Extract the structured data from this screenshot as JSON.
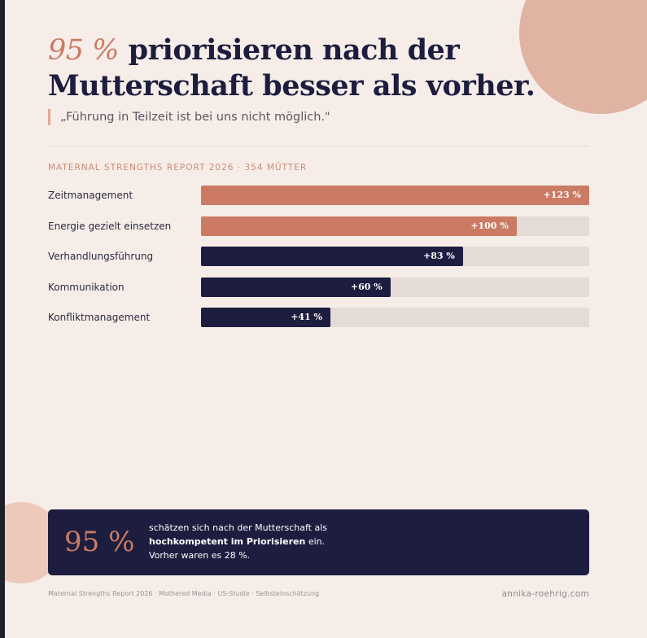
{
  "headline": {
    "accent": "95 %",
    "line1_rest": " priorisieren nach der",
    "line2": "Mutterschaft besser als vorher."
  },
  "quote": "„Führung in Teilzeit ist bei uns nicht möglich.\"",
  "report_label": "MATERNAL STRENGTHS REPORT 2026 · 354 MÜTTER",
  "colors": {
    "accent": "#cb7b63",
    "navy": "#1c1d3f",
    "track": "#e4dbd7",
    "background": "#f6ede8"
  },
  "chart_data": {
    "type": "bar",
    "orientation": "horizontal",
    "categories": [
      "Zeitmanagement",
      "Energie gezielt einsetzen",
      "Verhandlungsführung",
      "Kommunikation",
      "Konfliktmanagement"
    ],
    "values": [
      123,
      100,
      83,
      60,
      41
    ],
    "value_labels": [
      "+123 %",
      "+100 %",
      "+83 %",
      "+60 %",
      "+41 %"
    ],
    "bar_colors": [
      "#cb7b63",
      "#cb7b63",
      "#1c1d3f",
      "#1c1d3f",
      "#1c1d3f"
    ],
    "xlim": [
      0,
      123
    ],
    "title": "",
    "xlabel": "",
    "ylabel": "",
    "grid": false
  },
  "stat": {
    "number": "95 %",
    "line1": "schätzen sich nach der Mutterschaft als",
    "line2_bold": "hochkompetent im Priorisieren",
    "line2_rest": " ein.",
    "line3": "Vorher waren es 28 %."
  },
  "footer": {
    "source": "Maternal Strengths Report 2026 · Mothered Media · US-Studie · Selbsteinschätzung",
    "website": "annika-roehrig.com"
  }
}
